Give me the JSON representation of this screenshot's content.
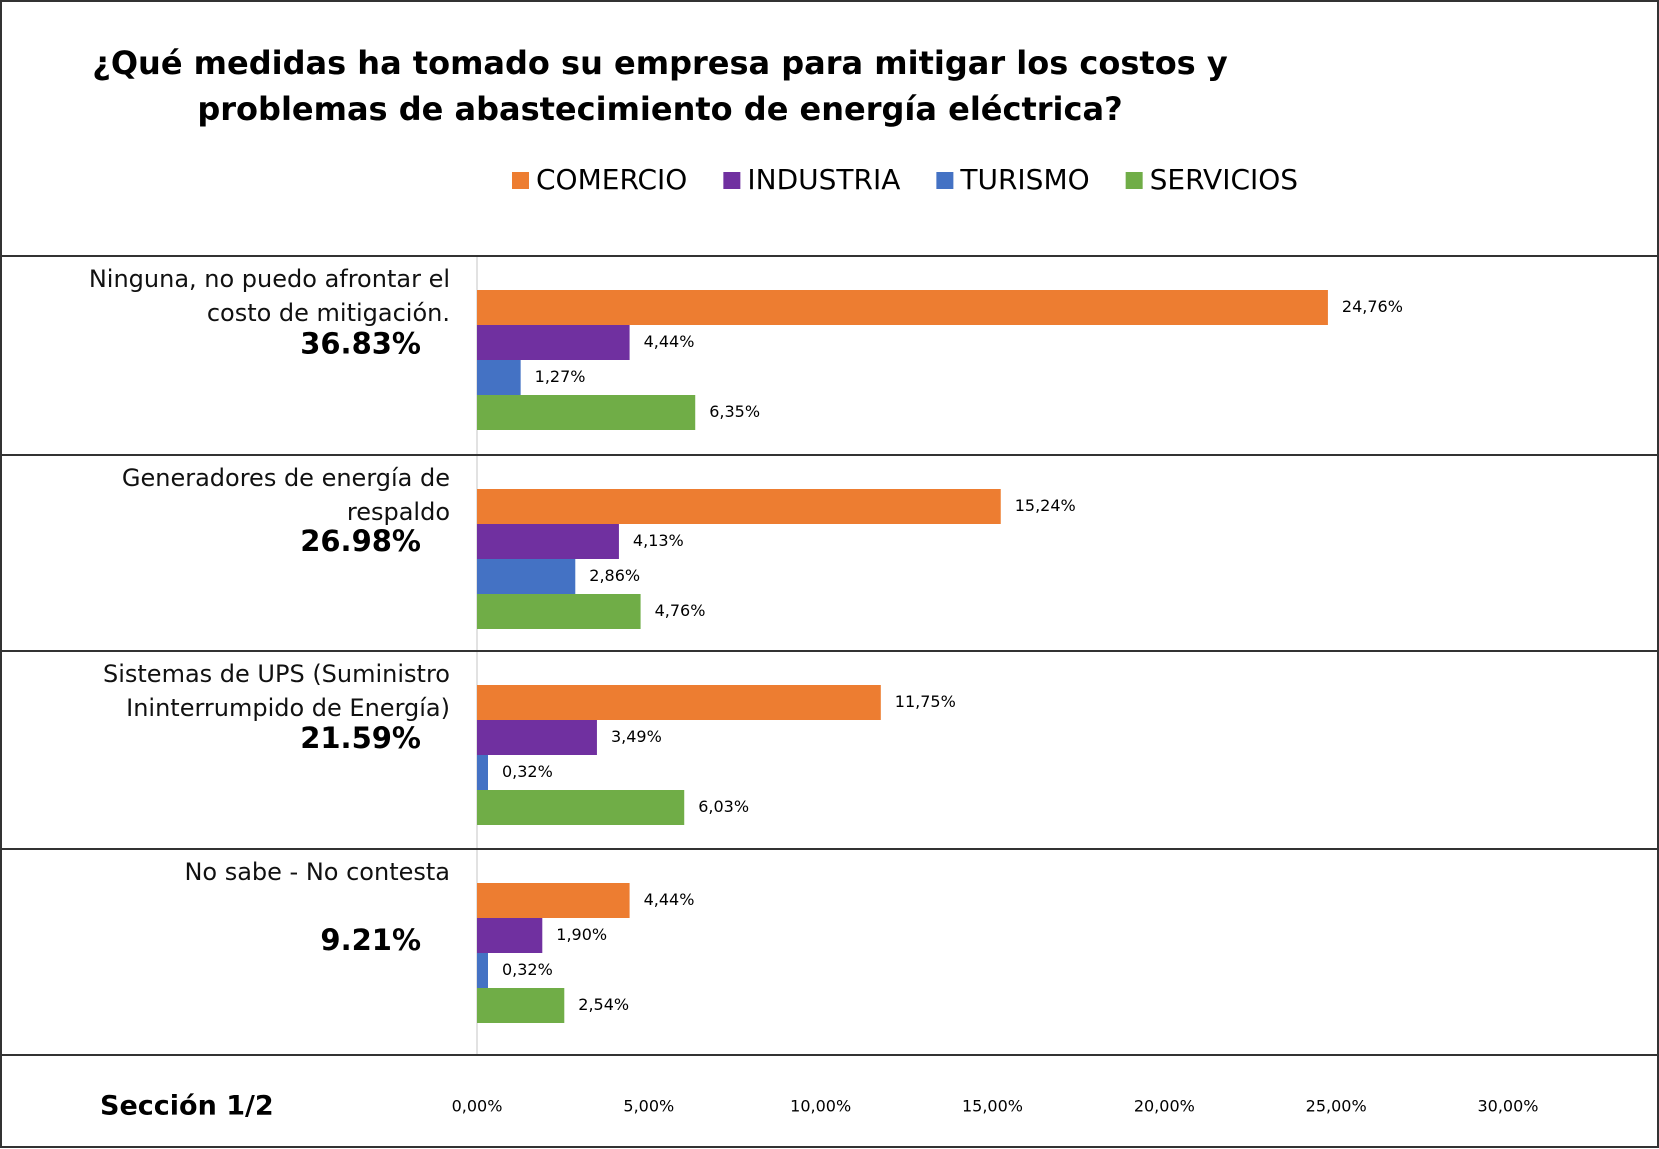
{
  "chart_data": {
    "type": "bar",
    "orientation": "horizontal",
    "title": "¿Qué medidas ha tomado su empresa para mitigar los costos y problemas de abastecimiento de energía eléctrica?",
    "footer": "Sección 1/2",
    "categories": [
      "Ninguna, no puedo afrontar el costo de mitigación.",
      "Generadores de energía de respaldo",
      "Sistemas de UPS (Suministro Ininterrumpido de Energía)",
      "No sabe - No contesta"
    ],
    "totals": [
      36.83,
      26.98,
      21.59,
      9.21
    ],
    "total_labels": [
      "36.83%",
      "26.98%",
      "21.59%",
      "9.21%"
    ],
    "series": [
      {
        "name": "COMERCIO",
        "color": "#ed7d31",
        "values": [
          24.76,
          15.24,
          11.75,
          4.44
        ],
        "value_labels": [
          "24,76%",
          "15,24%",
          "11,75%",
          "4,44%"
        ]
      },
      {
        "name": "INDUSTRIA",
        "color": "#7030a0",
        "values": [
          4.44,
          4.13,
          3.49,
          1.9
        ],
        "value_labels": [
          "4,44%",
          "4,13%",
          "3,49%",
          "1,90%"
        ]
      },
      {
        "name": "TURISMO",
        "color": "#4472c4",
        "values": [
          1.27,
          2.86,
          0.32,
          0.32
        ],
        "value_labels": [
          "1,27%",
          "2,86%",
          "0,32%",
          "0,32%"
        ]
      },
      {
        "name": "SERVICIOS",
        "color": "#70ad47",
        "values": [
          6.35,
          4.76,
          6.03,
          2.54
        ],
        "value_labels": [
          "6,35%",
          "4,76%",
          "6,03%",
          "2,54%"
        ]
      }
    ],
    "xlim": [
      0,
      30
    ],
    "xticks": [
      {
        "value": 0,
        "label": "0,00%"
      },
      {
        "value": 5,
        "label": "5,00%"
      },
      {
        "value": 10,
        "label": "10,00%"
      },
      {
        "value": 15,
        "label": "15,00%"
      },
      {
        "value": 20,
        "label": "20,00%"
      },
      {
        "value": 25,
        "label": "25,00%"
      },
      {
        "value": 30,
        "label": "30,00%"
      }
    ],
    "legend": "top"
  }
}
